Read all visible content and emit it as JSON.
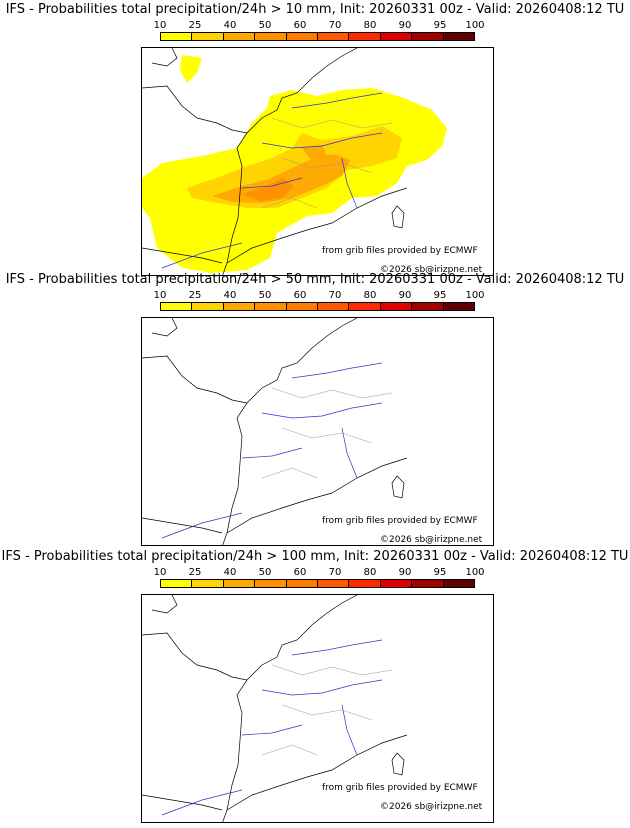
{
  "colorbar": {
    "ticks": [
      "10",
      "25",
      "40",
      "50",
      "60",
      "70",
      "80",
      "90",
      "95",
      "100"
    ],
    "colors": [
      "#ffff00",
      "#ffd400",
      "#ffaa00",
      "#ff9000",
      "#ff7a00",
      "#ff5a00",
      "#ff2a00",
      "#e00000",
      "#a00000",
      "#600000"
    ]
  },
  "panels": [
    {
      "title": "IFS - Probabilities total precipitation/24h > 10 mm, Init: 20260331 00z - Valid: 20260408:12 TU",
      "credit_source": "from grib files provided by ECMWF",
      "credit_copy": "©2026 sb@irizpne.net",
      "has_precip": true
    },
    {
      "title": "IFS - Probabilities total precipitation/24h > 50 mm, Init: 20260331 00z - Valid: 20260408:12 TU",
      "credit_source": "from grib files provided by ECMWF",
      "credit_copy": "©2026 sb@irizpne.net",
      "has_precip": false
    },
    {
      "title": "IFS - Probabilities total precipitation/24h > 100 mm, Init: 20260331 00z - Valid: 20260408:12 TU",
      "credit_source": "from grib files provided by ECMWF",
      "credit_copy": "©2026 sb@irizpne.net",
      "has_precip": false
    }
  ]
}
